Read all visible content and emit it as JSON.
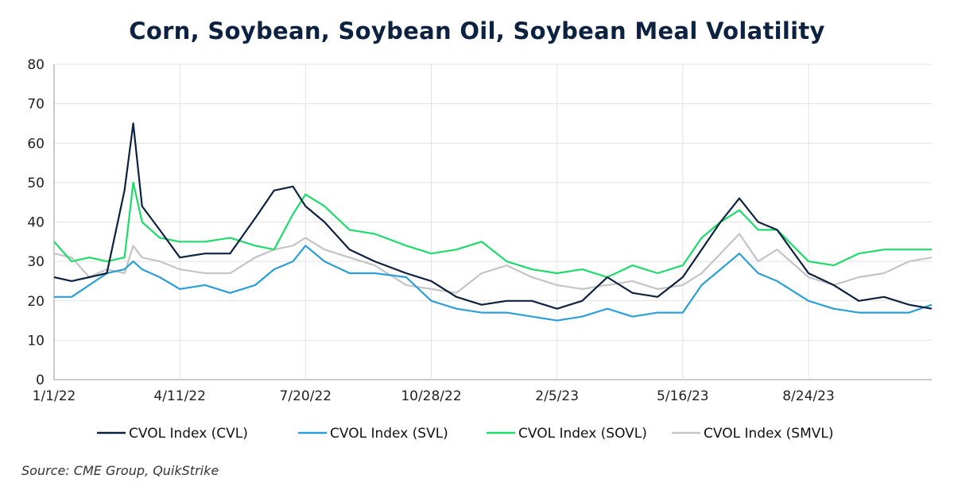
{
  "chart_data": {
    "type": "line",
    "title": "Corn, Soybean, Soybean Oil, Soybean Meal Volatility",
    "xlabel": "",
    "ylabel": "",
    "ylim": [
      0,
      80
    ],
    "yticks": [
      "0",
      "10",
      "20",
      "30",
      "40",
      "50",
      "60",
      "70",
      "80"
    ],
    "xlim": [
      "2022-01-01",
      "2023-11-30"
    ],
    "xticks": [
      {
        "label": "1/1/22",
        "date": "2022-01-01"
      },
      {
        "label": "4/11/22",
        "date": "2022-04-11"
      },
      {
        "label": "7/20/22",
        "date": "2022-07-20"
      },
      {
        "label": "10/28/22",
        "date": "2022-10-28"
      },
      {
        "label": "2/5/23",
        "date": "2023-02-05"
      },
      {
        "label": "5/16/23",
        "date": "2023-05-16"
      },
      {
        "label": "8/24/23",
        "date": "2023-08-24"
      }
    ],
    "grid": true,
    "legend_position": "bottom",
    "x": [
      "2022-01-01",
      "2022-01-15",
      "2022-01-29",
      "2022-02-12",
      "2022-02-26",
      "2022-03-05",
      "2022-03-12",
      "2022-03-26",
      "2022-04-11",
      "2022-05-01",
      "2022-05-21",
      "2022-06-10",
      "2022-06-25",
      "2022-07-10",
      "2022-07-20",
      "2022-08-04",
      "2022-08-24",
      "2022-09-13",
      "2022-10-08",
      "2022-10-28",
      "2022-11-17",
      "2022-12-07",
      "2022-12-27",
      "2023-01-16",
      "2023-02-05",
      "2023-02-25",
      "2023-03-17",
      "2023-04-06",
      "2023-04-26",
      "2023-05-16",
      "2023-05-31",
      "2023-06-15",
      "2023-06-30",
      "2023-07-15",
      "2023-07-30",
      "2023-08-24",
      "2023-09-13",
      "2023-10-03",
      "2023-10-23",
      "2023-11-12",
      "2023-11-30"
    ],
    "series": [
      {
        "name": "CVOL Index (CVL)",
        "color": "#0d2240",
        "values": [
          26,
          25,
          26,
          27,
          48,
          65,
          44,
          38,
          31,
          32,
          32,
          41,
          48,
          49,
          44,
          40,
          33,
          30,
          27,
          25,
          21,
          19,
          20,
          20,
          18,
          20,
          26,
          22,
          21,
          26,
          33,
          40,
          46,
          40,
          38,
          27,
          24,
          20,
          21,
          19,
          18
        ]
      },
      {
        "name": "CVOL Index (SVL)",
        "color": "#2a9fd8",
        "values": [
          21,
          21,
          24,
          27,
          28,
          30,
          28,
          26,
          23,
          24,
          22,
          24,
          28,
          30,
          34,
          30,
          27,
          27,
          26,
          20,
          18,
          17,
          17,
          16,
          15,
          16,
          18,
          16,
          17,
          17,
          24,
          28,
          32,
          27,
          25,
          20,
          18,
          17,
          17,
          17,
          19
        ]
      },
      {
        "name": "CVOL Index (SOVL)",
        "color": "#1ddc6a",
        "values": [
          35,
          30,
          31,
          30,
          31,
          50,
          40,
          36,
          35,
          35,
          36,
          34,
          33,
          42,
          47,
          44,
          38,
          37,
          34,
          32,
          33,
          35,
          30,
          28,
          27,
          28,
          26,
          29,
          27,
          29,
          36,
          40,
          43,
          38,
          38,
          30,
          29,
          32,
          33,
          33,
          33
        ]
      },
      {
        "name": "CVOL Index (SMVL)",
        "color": "#c4c4c4",
        "values": [
          32,
          31,
          26,
          28,
          27,
          34,
          31,
          30,
          28,
          27,
          27,
          31,
          33,
          34,
          36,
          33,
          31,
          29,
          24,
          23,
          22,
          27,
          29,
          26,
          24,
          23,
          24,
          25,
          23,
          24,
          27,
          32,
          37,
          30,
          33,
          26,
          24,
          26,
          27,
          30,
          31
        ]
      }
    ]
  },
  "source": "Source: CME Group, QuikStrike"
}
